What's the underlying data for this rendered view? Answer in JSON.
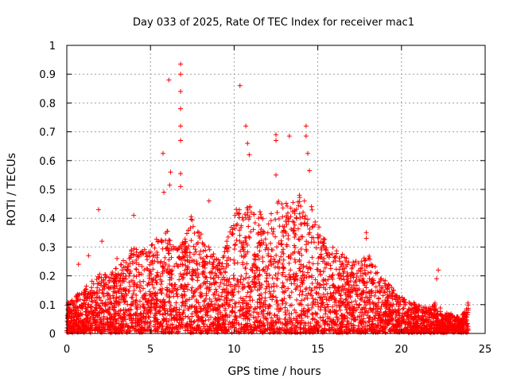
{
  "chart_data": {
    "type": "scatter",
    "title": "Day 033 of 2025, Rate Of TEC Index for receiver mac1",
    "xlabel": "GPS time / hours",
    "ylabel": "ROTI / TECUs",
    "xlim": [
      0,
      25
    ],
    "ylim": [
      0,
      1
    ],
    "xticks": [
      0,
      5,
      10,
      15,
      20,
      25
    ],
    "yticks": [
      0,
      0.1,
      0.2,
      0.3,
      0.4,
      0.5,
      0.6,
      0.7,
      0.8,
      0.9,
      1
    ],
    "grid": true,
    "marker": "+",
    "color": "#ff0000",
    "notable_points": [
      {
        "x": 6.8,
        "y": 0.935
      },
      {
        "x": 6.8,
        "y": 0.9
      },
      {
        "x": 6.8,
        "y": 0.84
      },
      {
        "x": 6.8,
        "y": 0.78
      },
      {
        "x": 6.8,
        "y": 0.72
      },
      {
        "x": 6.8,
        "y": 0.67
      },
      {
        "x": 6.8,
        "y": 0.555
      },
      {
        "x": 6.8,
        "y": 0.51
      },
      {
        "x": 6.1,
        "y": 0.88
      },
      {
        "x": 5.75,
        "y": 0.625
      },
      {
        "x": 6.2,
        "y": 0.56
      },
      {
        "x": 6.15,
        "y": 0.515
      },
      {
        "x": 5.8,
        "y": 0.49
      },
      {
        "x": 10.35,
        "y": 0.86
      },
      {
        "x": 10.7,
        "y": 0.72
      },
      {
        "x": 10.8,
        "y": 0.66
      },
      {
        "x": 10.9,
        "y": 0.62
      },
      {
        "x": 12.5,
        "y": 0.69
      },
      {
        "x": 12.5,
        "y": 0.67
      },
      {
        "x": 13.3,
        "y": 0.685
      },
      {
        "x": 14.3,
        "y": 0.72
      },
      {
        "x": 14.3,
        "y": 0.685
      },
      {
        "x": 14.4,
        "y": 0.625
      },
      {
        "x": 14.5,
        "y": 0.565
      },
      {
        "x": 12.5,
        "y": 0.55
      },
      {
        "x": 1.9,
        "y": 0.43
      },
      {
        "x": 8.5,
        "y": 0.46
      },
      {
        "x": 17.9,
        "y": 0.35
      },
      {
        "x": 17.9,
        "y": 0.33
      },
      {
        "x": 22.2,
        "y": 0.22
      },
      {
        "x": 22.1,
        "y": 0.19
      },
      {
        "x": 0.7,
        "y": 0.24
      },
      {
        "x": 1.3,
        "y": 0.27
      },
      {
        "x": 2.1,
        "y": 0.32
      },
      {
        "x": 3.0,
        "y": 0.26
      },
      {
        "x": 4.0,
        "y": 0.41
      },
      {
        "x": 13.9,
        "y": 0.48
      }
    ],
    "envelope": {
      "x": [
        0,
        1,
        2,
        3,
        4,
        5,
        5.5,
        6,
        6.5,
        7,
        7.5,
        8,
        8.5,
        9,
        9.5,
        10,
        10.5,
        11,
        11.5,
        12,
        12.5,
        13,
        13.5,
        14,
        14.5,
        15,
        15.5,
        16,
        16.5,
        17,
        17.5,
        18,
        18.5,
        19,
        19.5,
        20,
        20.5,
        21,
        21.5,
        22,
        22.5,
        23,
        23.5,
        24
      ],
      "y": [
        0.1,
        0.15,
        0.2,
        0.22,
        0.3,
        0.3,
        0.33,
        0.35,
        0.3,
        0.32,
        0.42,
        0.35,
        0.3,
        0.25,
        0.3,
        0.45,
        0.42,
        0.45,
        0.42,
        0.4,
        0.45,
        0.45,
        0.45,
        0.5,
        0.45,
        0.4,
        0.3,
        0.3,
        0.27,
        0.25,
        0.25,
        0.28,
        0.22,
        0.18,
        0.15,
        0.12,
        0.1,
        0.1,
        0.08,
        0.1,
        0.07,
        0.06,
        0.05,
        0.1
      ]
    }
  }
}
